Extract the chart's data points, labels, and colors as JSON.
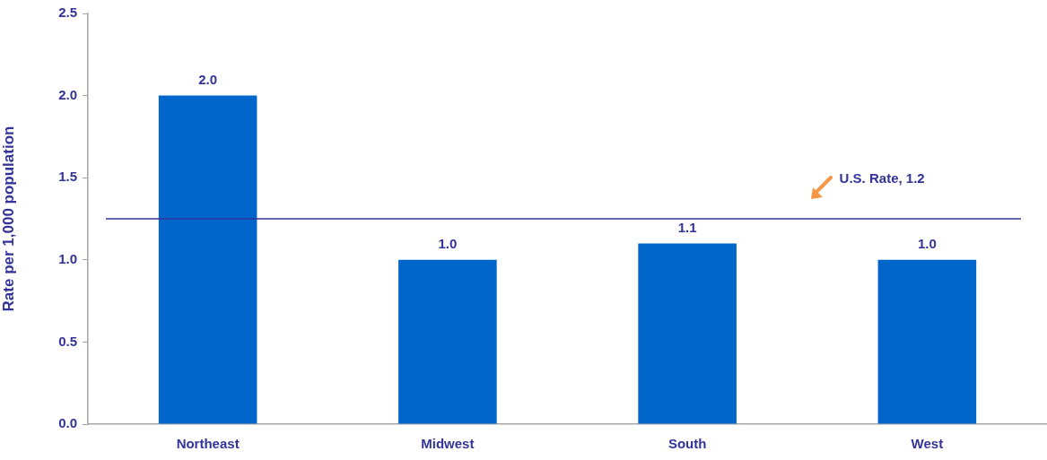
{
  "chart_data": {
    "type": "bar",
    "ylabel": "Rate per 1,000 population",
    "categories": [
      "Northeast",
      "Midwest",
      "South",
      "West"
    ],
    "values": [
      2.0,
      1.0,
      1.1,
      1.0
    ],
    "color": "#0066cc",
    "value_labels": [
      "2.0",
      "1.0",
      "1.1",
      "1.0"
    ],
    "ylim": [
      0,
      2.5
    ],
    "yticks": [
      {
        "value": 0,
        "label": "0.0"
      },
      {
        "value": 0.5,
        "label": "0.5"
      },
      {
        "value": 1,
        "label": "1.0"
      },
      {
        "value": 1.5,
        "label": "1.5"
      },
      {
        "value": 2,
        "label": "2.0"
      },
      {
        "value": 2.5,
        "label": "2.5"
      }
    ],
    "ref_lines": [
      {
        "axis": "y",
        "value": 1.25,
        "label": "U.S. Rate, 1.2",
        "color": "#333399"
      }
    ],
    "grid": false,
    "legend": false
  }
}
